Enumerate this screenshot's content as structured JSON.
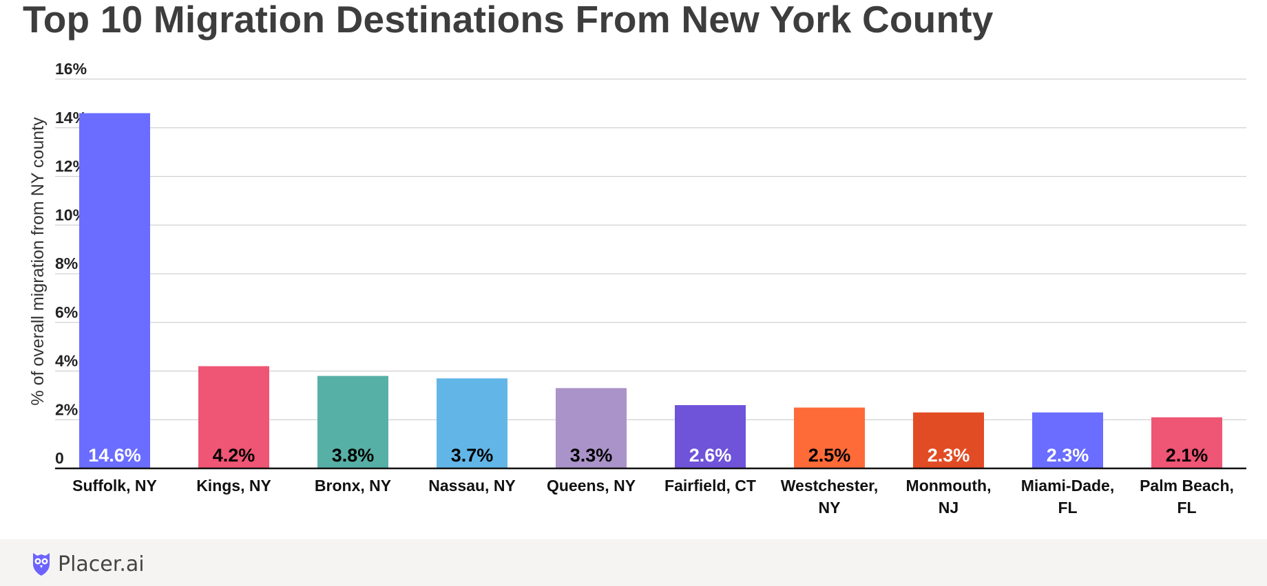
{
  "title": "Top 10 Migration Destinations From New York County",
  "brand": {
    "name": "Placer.ai",
    "icon": "owl-logo-icon",
    "icon_color": "#6c63ff"
  },
  "chart_data": {
    "type": "bar",
    "title": "Top 10 Migration Destinations From New York County",
    "xlabel": "",
    "ylabel": "% of overall migration from NY county",
    "ylim": [
      0,
      16
    ],
    "yticks": [
      0,
      2,
      4,
      6,
      8,
      10,
      12,
      14,
      16
    ],
    "ytick_labels": [
      "0",
      "2%",
      "4%",
      "6%",
      "8%",
      "10%",
      "12%",
      "14%",
      "16%"
    ],
    "grid": true,
    "legend": "none",
    "categories": [
      [
        "Suffolk, NY"
      ],
      [
        "Kings, NY"
      ],
      [
        "Bronx, NY"
      ],
      [
        "Nassau, NY"
      ],
      [
        "Queens, NY"
      ],
      [
        "Fairfield, CT"
      ],
      [
        "Westchester,",
        "NY"
      ],
      [
        "Monmouth,",
        "NJ"
      ],
      [
        "Miami-Dade,",
        "FL"
      ],
      [
        "Palm Beach,",
        "FL"
      ]
    ],
    "values": [
      14.6,
      4.2,
      3.8,
      3.7,
      3.3,
      2.6,
      2.5,
      2.3,
      2.3,
      2.1
    ],
    "data_labels": [
      "14.6%",
      "4.2%",
      "3.8%",
      "3.7%",
      "3.3%",
      "2.6%",
      "2.5%",
      "2.3%",
      "2.3%",
      "2.1%"
    ],
    "colors": [
      "#6a6dff",
      "#ef5574",
      "#56b0a5",
      "#62b6e7",
      "#aa93c9",
      "#6f53d9",
      "#ff6a39",
      "#e24c24",
      "#6a6dff",
      "#ef5574"
    ],
    "label_colors": [
      "#ffffff",
      "#000000",
      "#000000",
      "#000000",
      "#000000",
      "#ffffff",
      "#000000",
      "#ffffff",
      "#ffffff",
      "#000000"
    ]
  }
}
